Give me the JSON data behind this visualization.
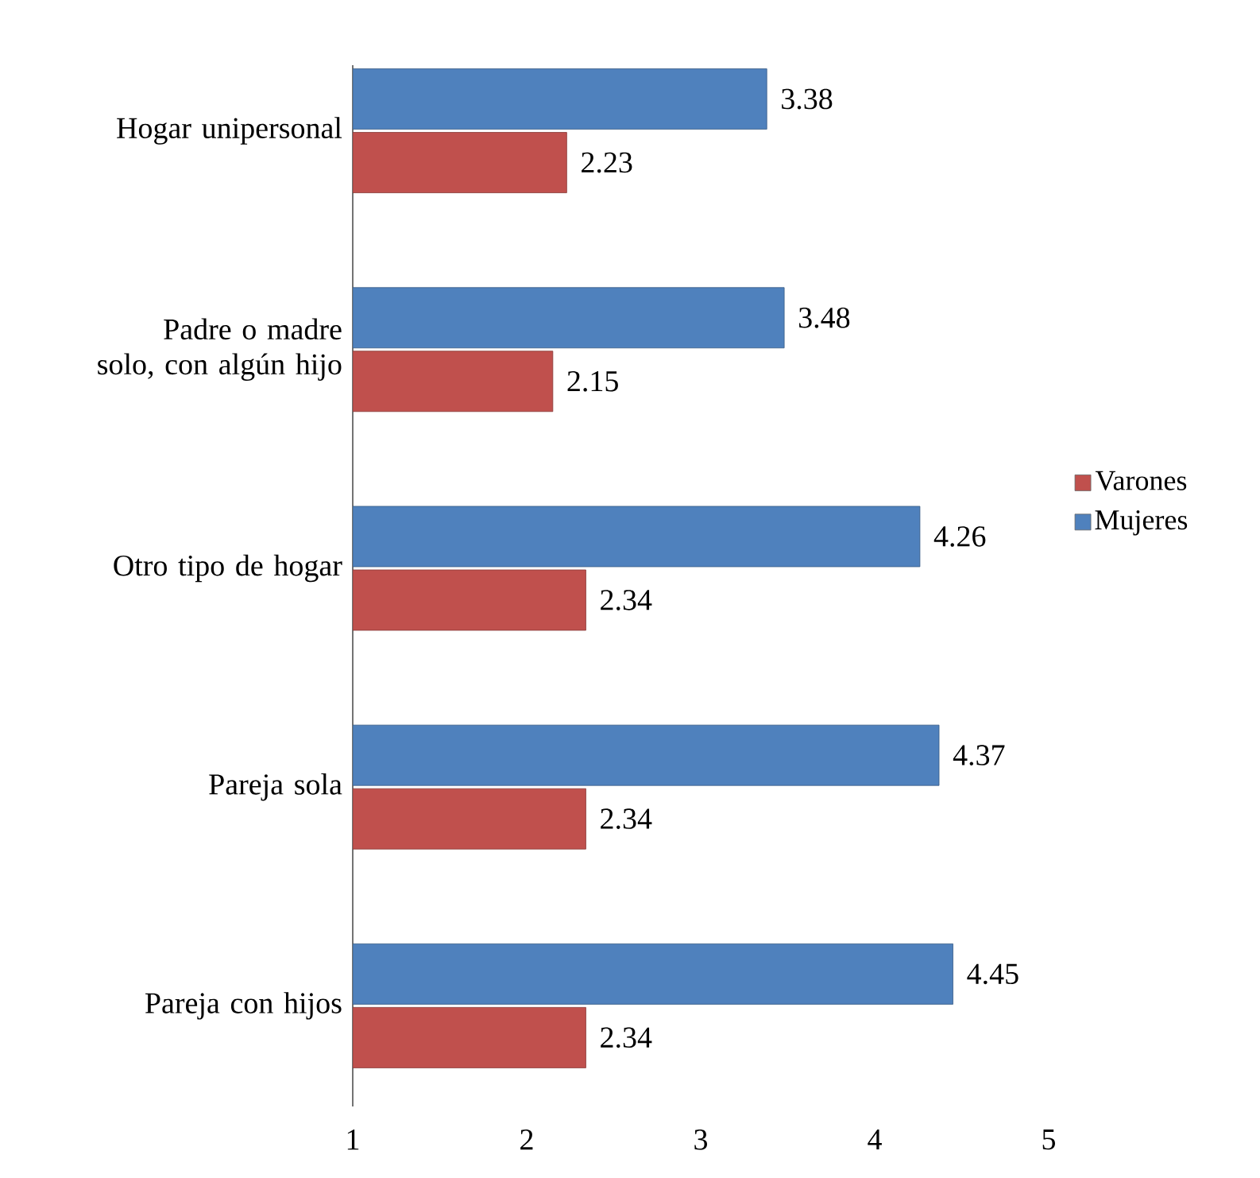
{
  "chart_data": {
    "type": "bar",
    "orientation": "horizontal",
    "categories": [
      "Hogar unipersonal",
      "Padre o madre solo, con algún hijo",
      "Otro tipo de hogar",
      "Pareja sola",
      "Pareja con hijos"
    ],
    "series": [
      {
        "name": "Varones",
        "color": "#c0504d",
        "values": [
          2.23,
          2.15,
          2.34,
          2.34,
          2.34
        ]
      },
      {
        "name": "Mujeres",
        "color": "#4f81bd",
        "values": [
          3.38,
          3.48,
          4.26,
          4.37,
          4.45
        ]
      }
    ],
    "xlim": [
      1,
      5
    ],
    "xticks": [
      1,
      2,
      3,
      4,
      5
    ],
    "data_labels": true,
    "legend": "right",
    "grid": false
  }
}
